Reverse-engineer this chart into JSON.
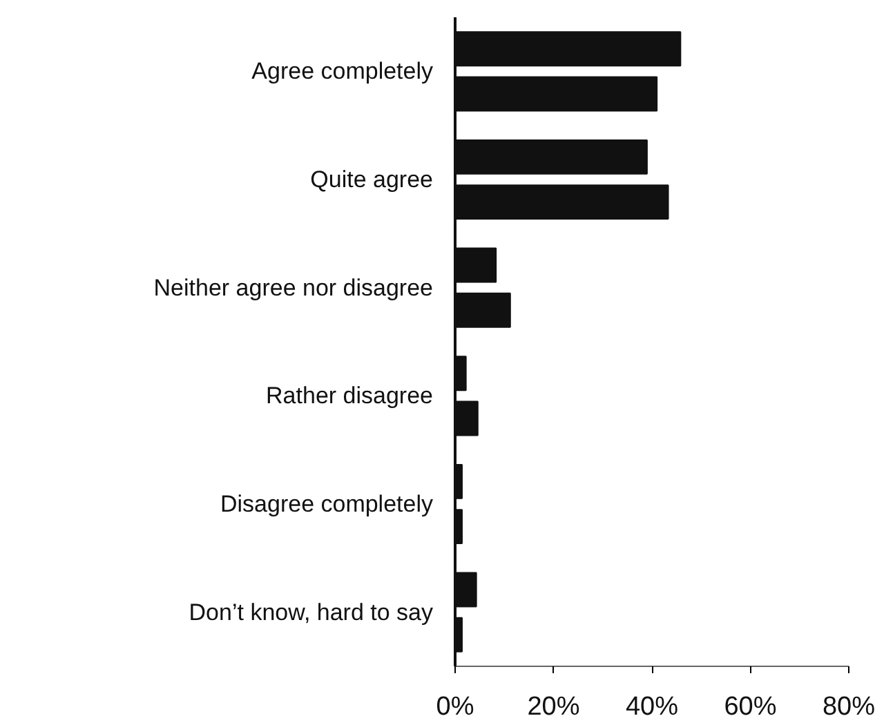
{
  "chart_data": {
    "type": "bar",
    "orientation": "horizontal",
    "categories": [
      "Agree completely",
      "Quite agree",
      "Neither agree nor disagree",
      "Rather disagree",
      "Disagree completely",
      "Don’t know, hard to say"
    ],
    "series": [
      {
        "color": "#111111",
        "values": [
          45.8,
          39.0,
          8.3,
          2.2,
          1.4,
          4.3
        ]
      },
      {
        "color": "#111111",
        "values": [
          41.0,
          43.3,
          11.2,
          4.6,
          1.4,
          1.4
        ]
      }
    ],
    "xlim": [
      0,
      80
    ],
    "xticks": [
      {
        "value": 0,
        "label": "0%"
      },
      {
        "value": 20,
        "label": "20%"
      },
      {
        "value": 40,
        "label": "40%"
      },
      {
        "value": 60,
        "label": "60%"
      },
      {
        "value": 80,
        "label": "80%"
      }
    ],
    "grid": false
  }
}
